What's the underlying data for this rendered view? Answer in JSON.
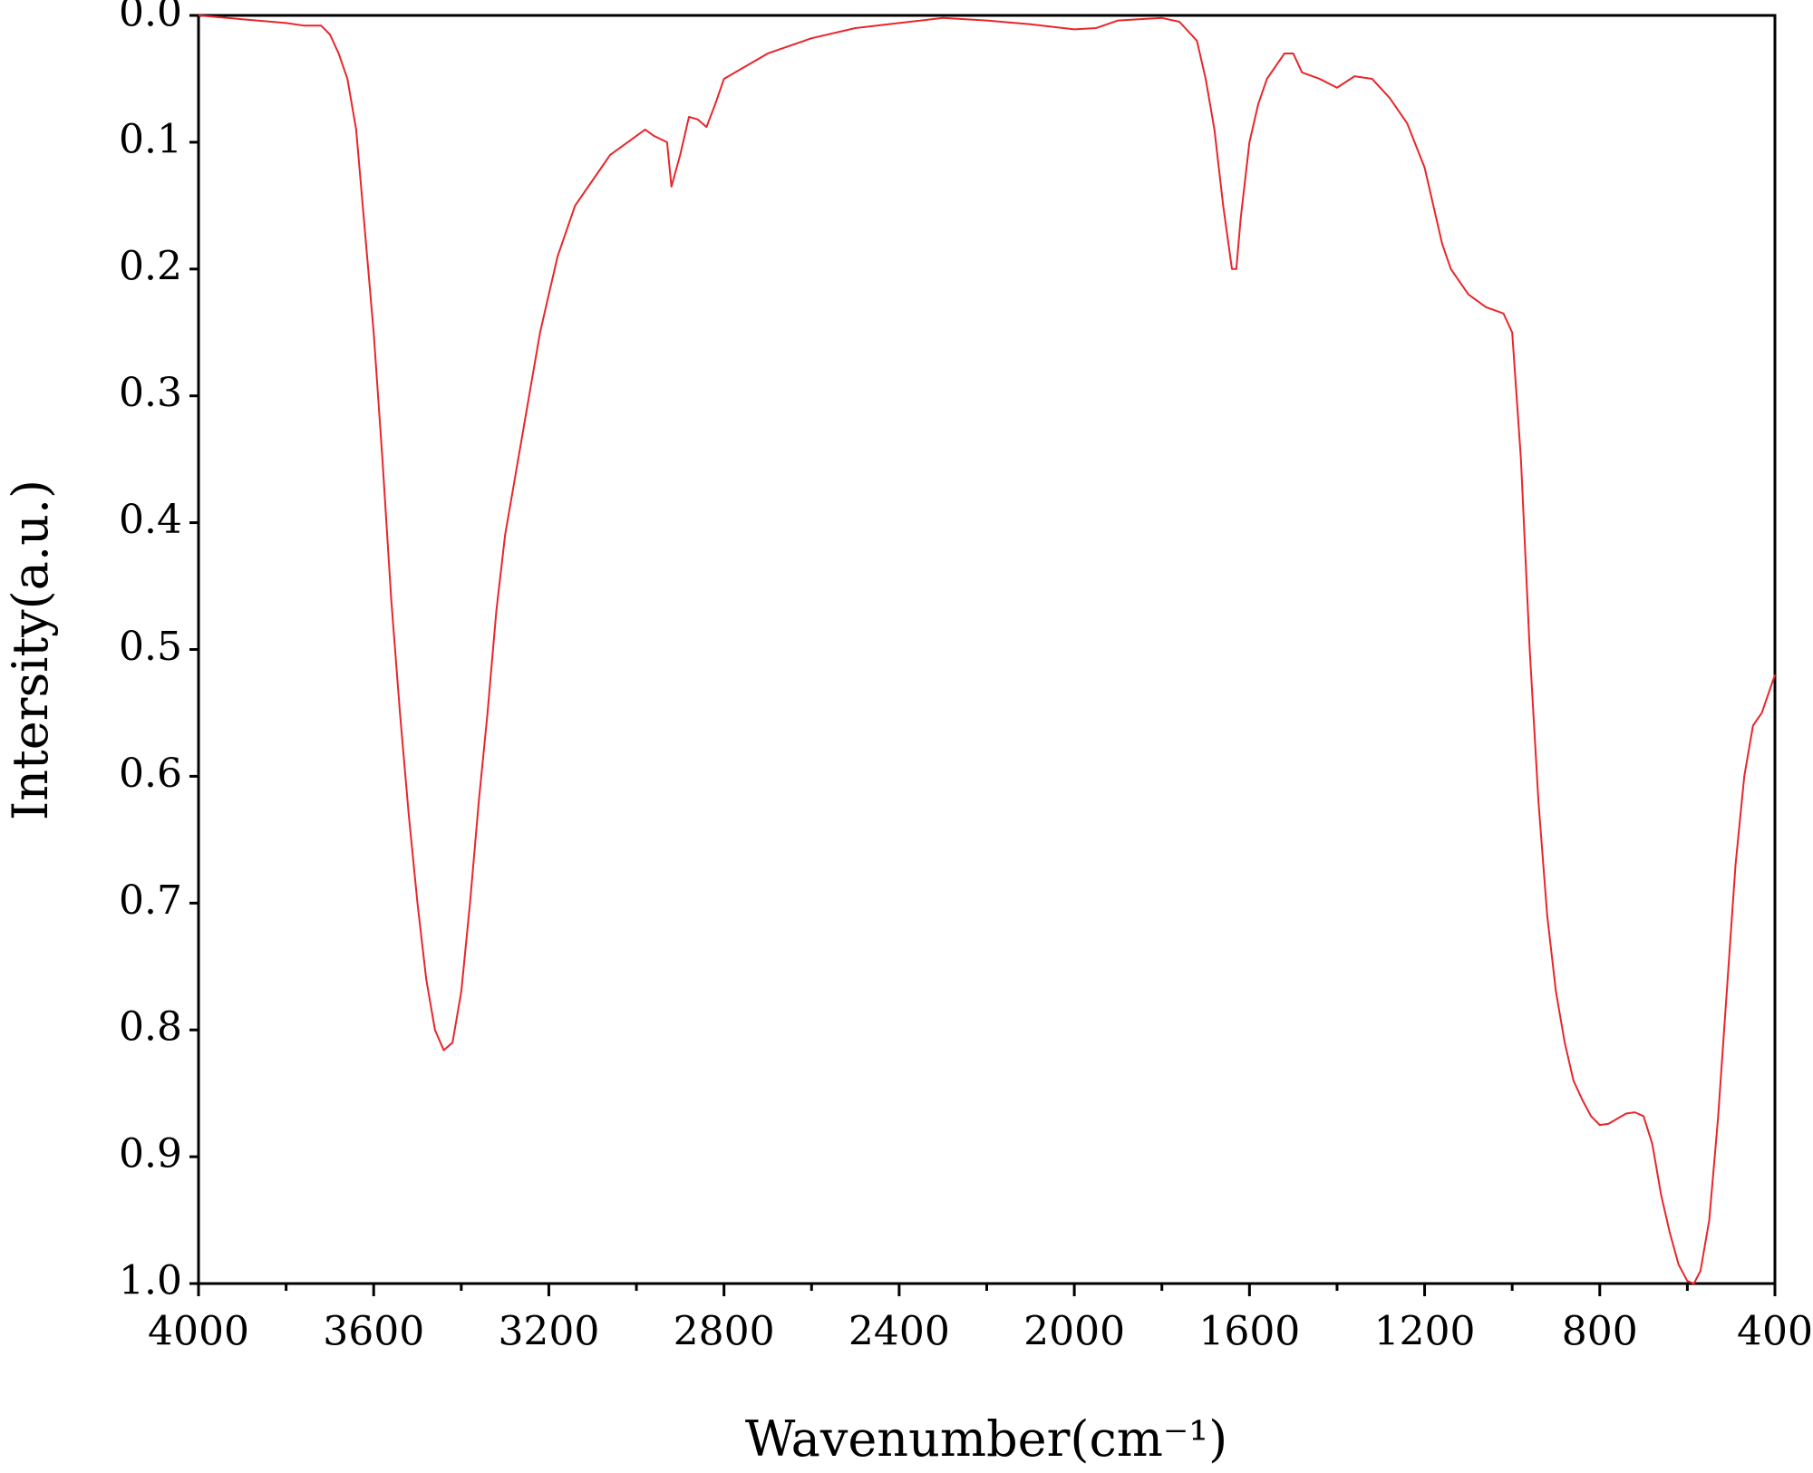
{
  "chart_data": {
    "type": "line",
    "x_label": "Wavenumber(cm⁻¹)",
    "y_label": "Intersity(a.u.)",
    "color": "#e8262b",
    "xlim": [
      4000,
      400
    ],
    "ylim": [
      1,
      0
    ],
    "xticks": [
      4000,
      3600,
      3200,
      2800,
      2400,
      2000,
      1600,
      1200,
      800,
      400
    ],
    "xminor_ticks": [
      3800,
      3400,
      3000,
      2600,
      2200,
      1800,
      1400,
      1000,
      600
    ],
    "yticks": [
      {
        "value": 0,
        "label": "0.0"
      },
      0.1,
      0.2,
      0.3,
      0.4,
      0.5,
      0.6,
      0.7,
      0.8,
      0.9,
      {
        "value": 1,
        "label": "1.0"
      }
    ],
    "x": [
      4000,
      3900,
      3800,
      3760,
      3720,
      3700,
      3680,
      3660,
      3640,
      3620,
      3600,
      3580,
      3560,
      3540,
      3520,
      3500,
      3480,
      3460,
      3440,
      3420,
      3400,
      3380,
      3360,
      3340,
      3320,
      3300,
      3280,
      3260,
      3240,
      3220,
      3200,
      3180,
      3160,
      3140,
      3100,
      3060,
      3000,
      2980,
      2960,
      2930,
      2920,
      2900,
      2880,
      2860,
      2840,
      2820,
      2800,
      2700,
      2600,
      2500,
      2400,
      2300,
      2200,
      2100,
      2000,
      1950,
      1900,
      1800,
      1760,
      1720,
      1700,
      1680,
      1660,
      1640,
      1630,
      1620,
      1600,
      1580,
      1560,
      1540,
      1520,
      1500,
      1480,
      1440,
      1400,
      1360,
      1320,
      1280,
      1240,
      1200,
      1180,
      1160,
      1140,
      1100,
      1060,
      1020,
      1000,
      980,
      960,
      940,
      920,
      900,
      880,
      860,
      840,
      820,
      800,
      780,
      760,
      740,
      720,
      700,
      680,
      660,
      640,
      620,
      600,
      585,
      570,
      550,
      530,
      510,
      490,
      470,
      450,
      430,
      410,
      400
    ],
    "values": [
      0.0,
      0.003,
      0.006,
      0.008,
      0.008,
      0.015,
      0.03,
      0.05,
      0.09,
      0.17,
      0.25,
      0.35,
      0.46,
      0.55,
      0.63,
      0.7,
      0.76,
      0.8,
      0.816,
      0.81,
      0.77,
      0.7,
      0.62,
      0.55,
      0.47,
      0.41,
      0.37,
      0.33,
      0.29,
      0.25,
      0.22,
      0.19,
      0.17,
      0.15,
      0.13,
      0.11,
      0.095,
      0.09,
      0.095,
      0.1,
      0.135,
      0.11,
      0.08,
      0.082,
      0.088,
      0.07,
      0.05,
      0.03,
      0.018,
      0.01,
      0.006,
      0.002,
      0.004,
      0.007,
      0.011,
      0.01,
      0.004,
      0.002,
      0.005,
      0.02,
      0.05,
      0.09,
      0.15,
      0.2,
      0.2,
      0.16,
      0.1,
      0.07,
      0.05,
      0.04,
      0.03,
      0.03,
      0.045,
      0.05,
      0.057,
      0.048,
      0.05,
      0.065,
      0.085,
      0.12,
      0.15,
      0.18,
      0.2,
      0.22,
      0.23,
      0.235,
      0.25,
      0.35,
      0.5,
      0.62,
      0.71,
      0.77,
      0.81,
      0.84,
      0.855,
      0.868,
      0.875,
      0.874,
      0.87,
      0.866,
      0.865,
      0.868,
      0.89,
      0.93,
      0.96,
      0.985,
      0.998,
      1.0,
      0.99,
      0.95,
      0.87,
      0.77,
      0.67,
      0.6,
      0.56,
      0.55,
      0.53,
      0.52
    ]
  }
}
